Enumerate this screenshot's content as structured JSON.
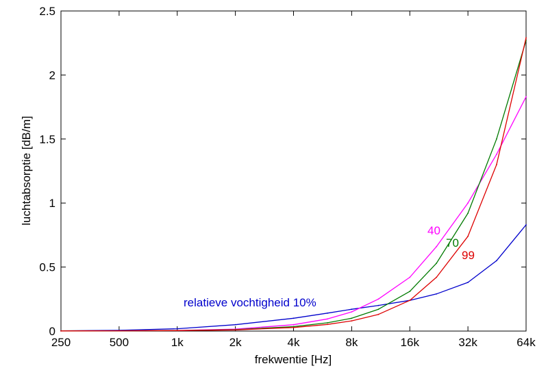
{
  "chart_data": {
    "type": "line",
    "xlabel": "frekwentie  [Hz]",
    "ylabel": "luchtabsorptie  [dB/m]",
    "x_scale": "log2",
    "x_ticks": [
      250,
      500,
      1000,
      2000,
      4000,
      8000,
      16000,
      32000,
      64000
    ],
    "x_tick_labels": [
      "250",
      "500",
      "1k",
      "2k",
      "4k",
      "8k",
      "16k",
      "32k",
      "64k"
    ],
    "xlim": [
      250,
      64000
    ],
    "ylim": [
      0,
      2.5
    ],
    "y_ticks": [
      0,
      0.5,
      1,
      1.5,
      2,
      2.5
    ],
    "y_tick_labels": [
      "0",
      "0.5",
      "1",
      "1.5",
      "2",
      "2.5"
    ],
    "grid": false,
    "series": [
      {
        "name": "relatieve vochtigheid 10%",
        "color": "#0000cc",
        "x": [
          250,
          500,
          1000,
          2000,
          4000,
          6000,
          8000,
          11000,
          16000,
          22000,
          32000,
          45000,
          64000
        ],
        "values": [
          0.002,
          0.006,
          0.018,
          0.05,
          0.1,
          0.14,
          0.17,
          0.2,
          0.24,
          0.29,
          0.38,
          0.55,
          0.83
        ]
      },
      {
        "name": "40",
        "color": "#ff00ff",
        "x": [
          250,
          500,
          1000,
          2000,
          4000,
          6000,
          8000,
          11000,
          16000,
          22000,
          32000,
          45000,
          64000
        ],
        "values": [
          0.001,
          0.002,
          0.005,
          0.015,
          0.05,
          0.095,
          0.15,
          0.25,
          0.42,
          0.66,
          1.0,
          1.38,
          1.83
        ]
      },
      {
        "name": "70",
        "color": "#007a00",
        "x": [
          250,
          500,
          1000,
          2000,
          4000,
          6000,
          8000,
          11000,
          16000,
          22000,
          32000,
          45000,
          64000
        ],
        "values": [
          0.001,
          0.002,
          0.004,
          0.011,
          0.035,
          0.065,
          0.1,
          0.17,
          0.31,
          0.53,
          0.92,
          1.5,
          2.27
        ]
      },
      {
        "name": "99",
        "color": "#dd0000",
        "x": [
          250,
          500,
          1000,
          2000,
          4000,
          6000,
          8000,
          11000,
          16000,
          22000,
          32000,
          45000,
          64000
        ],
        "values": [
          0.001,
          0.002,
          0.004,
          0.009,
          0.028,
          0.052,
          0.08,
          0.13,
          0.24,
          0.42,
          0.74,
          1.3,
          2.29
        ]
      }
    ],
    "annotations": [
      {
        "text": "relatieve vochtigheid 10%",
        "color": "#0000cc"
      },
      {
        "text": "40",
        "color": "#ff00ff"
      },
      {
        "text": "70",
        "color": "#007a00"
      },
      {
        "text": "99",
        "color": "#dd0000"
      }
    ]
  }
}
